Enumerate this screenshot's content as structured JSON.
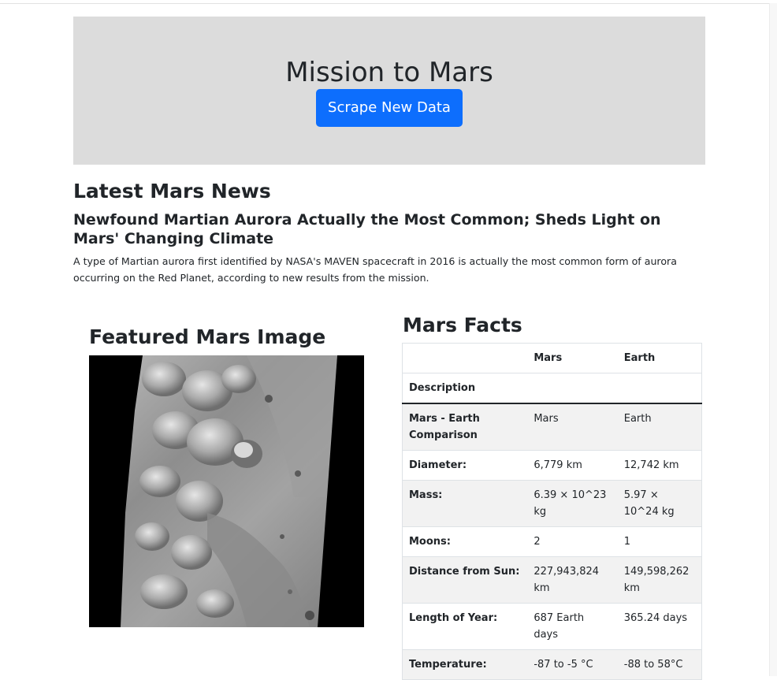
{
  "jumbotron": {
    "title": "Mission to Mars",
    "button_label": "Scrape New Data",
    "button_color": "#0d6efd",
    "background_color": "#dcdcdc"
  },
  "news": {
    "heading": "Latest Mars News",
    "title": "Newfound Martian Aurora Actually the Most Common; Sheds Light on Mars' Changing Climate",
    "paragraph": "A type of Martian aurora first identified by NASA's MAVEN spacecraft in 2016 is actually the most common form of aurora occurring on the Red Planet, according to new results from the mission."
  },
  "featured_image": {
    "heading": "Featured Mars Image"
  },
  "facts": {
    "heading": "Mars Facts",
    "columns": [
      "",
      "Mars",
      "Earth"
    ],
    "index_label": "Description",
    "rows": [
      {
        "label": "Mars - Earth Comparison",
        "mars": "Mars",
        "earth": "Earth"
      },
      {
        "label": "Diameter:",
        "mars": "6,779 km",
        "earth": "12,742 km"
      },
      {
        "label": "Mass:",
        "mars": "6.39 × 10^23 kg",
        "earth": "5.97 × 10^24 kg"
      },
      {
        "label": "Moons:",
        "mars": "2",
        "earth": "1"
      },
      {
        "label": "Distance from Sun:",
        "mars": "227,943,824 km",
        "earth": "149,598,262 km"
      },
      {
        "label": "Length of Year:",
        "mars": "687 Earth days",
        "earth": "365.24 days"
      },
      {
        "label": "Temperature:",
        "mars": "-87 to -5 °C",
        "earth": "-88 to 58°C"
      }
    ]
  }
}
